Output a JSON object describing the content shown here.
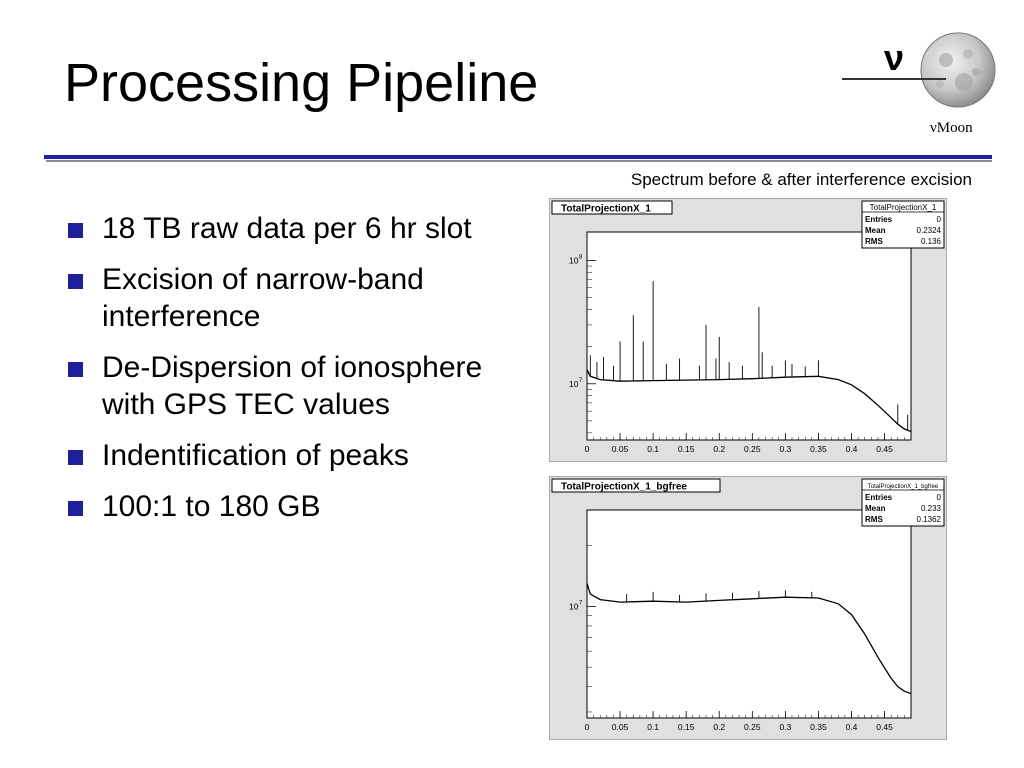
{
  "slide": {
    "title": "Processing Pipeline",
    "logo_symbol": "ν",
    "logo_caption": "νMoon",
    "caption": "Spectrum before & after interference excision",
    "bullets": [
      "18 TB raw data per 6 hr slot",
      "Excision of narrow-band interference",
      "De-Dispersion of ionosphere with GPS TEC values",
      "Indentification of peaks",
      "100:1 to 180 GB"
    ],
    "colors": {
      "accent": "#1f1fa0",
      "shadow": "#8c8c8c"
    }
  },
  "chart_data": [
    {
      "type": "line",
      "title": "TotalProjectionX_1",
      "stats": {
        "name": "TotalProjectionX_1",
        "rows": [
          {
            "label": "Entries",
            "value": "0"
          },
          {
            "label": "Mean",
            "value": "0.2324"
          },
          {
            "label": "RMS",
            "value": "0.136"
          }
        ]
      },
      "x_ticks": [
        "0",
        "0.05",
        "0.1",
        "0.15",
        "0.2",
        "0.25",
        "0.3",
        "0.35",
        "0.4",
        "0.45"
      ],
      "xlim": [
        0,
        0.49
      ],
      "y_scale": "log",
      "y_ticks": [
        {
          "value": 10000000,
          "label": "10^7"
        },
        {
          "value": 100000000,
          "label": "10^8"
        }
      ],
      "ylim": [
        3500000,
        170000000
      ],
      "series": [
        {
          "x": [
            0,
            0.005,
            0.02,
            0.05,
            0.1,
            0.15,
            0.2,
            0.25,
            0.3,
            0.35,
            0.38,
            0.4,
            0.42,
            0.44,
            0.46,
            0.47,
            0.48,
            0.49
          ],
          "y": [
            13000000,
            11500000,
            10800000,
            10500000,
            10600000,
            10700000,
            10800000,
            11000000,
            11300000,
            11500000,
            10800000,
            9800000,
            8300000,
            6700000,
            5300000,
            4700000,
            4300000,
            4100000
          ]
        }
      ],
      "spikes": [
        {
          "x": 0.005,
          "y": 17000000
        },
        {
          "x": 0.015,
          "y": 15000000
        },
        {
          "x": 0.025,
          "y": 16500000
        },
        {
          "x": 0.04,
          "y": 14000000
        },
        {
          "x": 0.05,
          "y": 22000000
        },
        {
          "x": 0.07,
          "y": 36000000
        },
        {
          "x": 0.085,
          "y": 22000000
        },
        {
          "x": 0.1,
          "y": 68000000
        },
        {
          "x": 0.12,
          "y": 14500000
        },
        {
          "x": 0.14,
          "y": 16000000
        },
        {
          "x": 0.17,
          "y": 14000000
        },
        {
          "x": 0.18,
          "y": 30000000
        },
        {
          "x": 0.195,
          "y": 16000000
        },
        {
          "x": 0.2,
          "y": 24000000
        },
        {
          "x": 0.215,
          "y": 15000000
        },
        {
          "x": 0.235,
          "y": 14000000
        },
        {
          "x": 0.26,
          "y": 42000000
        },
        {
          "x": 0.265,
          "y": 18000000
        },
        {
          "x": 0.28,
          "y": 14000000
        },
        {
          "x": 0.3,
          "y": 15500000
        },
        {
          "x": 0.31,
          "y": 14500000
        },
        {
          "x": 0.33,
          "y": 13800000
        },
        {
          "x": 0.35,
          "y": 15500000
        },
        {
          "x": 0.47,
          "y": 6800000
        },
        {
          "x": 0.485,
          "y": 5600000
        }
      ]
    },
    {
      "type": "line",
      "title": "TotalProjectionX_1_bgfree",
      "stats": {
        "name": "TotalProjectionX_1_bgfree",
        "rows": [
          {
            "label": "Entries",
            "value": "0"
          },
          {
            "label": "Mean",
            "value": "0.233"
          },
          {
            "label": "RMS",
            "value": "0.1362"
          }
        ]
      },
      "x_ticks": [
        "0",
        "0.05",
        "0.1",
        "0.15",
        "0.2",
        "0.25",
        "0.3",
        "0.35",
        "0.4",
        "0.45"
      ],
      "xlim": [
        0,
        0.49
      ],
      "y_scale": "log",
      "y_ticks": [
        {
          "value": 10000000,
          "label": "10^7"
        }
      ],
      "ylim": [
        2800000,
        30000000
      ],
      "series": [
        {
          "x": [
            0,
            0.005,
            0.02,
            0.05,
            0.1,
            0.15,
            0.2,
            0.25,
            0.3,
            0.35,
            0.38,
            0.4,
            0.42,
            0.44,
            0.46,
            0.47,
            0.48,
            0.49
          ],
          "y": [
            13000000,
            11500000,
            10800000,
            10500000,
            10600000,
            10500000,
            10700000,
            10900000,
            11100000,
            11000000,
            10300000,
            9100000,
            7300000,
            5600000,
            4400000,
            4000000,
            3800000,
            3700000
          ]
        }
      ],
      "spikes": [
        {
          "x": 0.06,
          "y": 11500000
        },
        {
          "x": 0.1,
          "y": 11800000
        },
        {
          "x": 0.14,
          "y": 11400000
        },
        {
          "x": 0.18,
          "y": 11600000
        },
        {
          "x": 0.22,
          "y": 11700000
        },
        {
          "x": 0.26,
          "y": 11900000
        },
        {
          "x": 0.3,
          "y": 12000000
        },
        {
          "x": 0.34,
          "y": 11800000
        }
      ]
    }
  ]
}
